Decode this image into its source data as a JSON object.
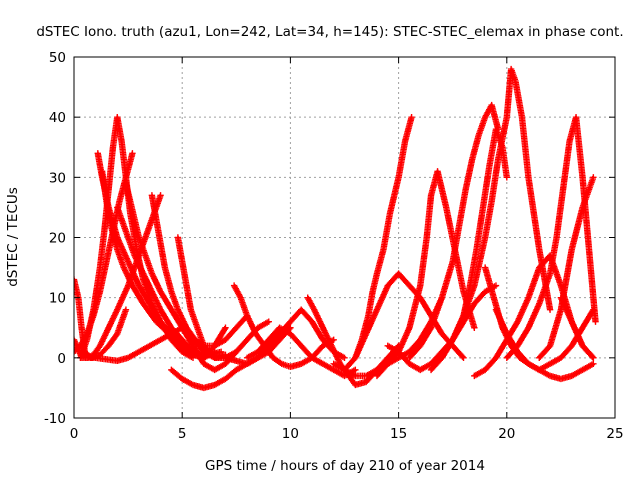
{
  "chart_data": {
    "type": "scatter",
    "title": "dSTEC Iono. truth (azu1, Lon=242, Lat=34, h=145): STEC-STEC_elemax in phase cont.",
    "xlabel": "GPS time / hours of day 210 of year 2014",
    "ylabel": "dSTEC  / TECUs",
    "xlim": [
      0,
      25
    ],
    "ylim": [
      -10,
      50
    ],
    "x_ticks": [
      "0",
      "5",
      "10",
      "15",
      "20",
      "25"
    ],
    "y_ticks": [
      "-10",
      "0",
      "10",
      "20",
      "30",
      "40",
      "50"
    ],
    "x_tick_values": [
      0,
      5,
      10,
      15,
      20,
      25
    ],
    "y_tick_values": [
      -10,
      0,
      10,
      20,
      30,
      40,
      50
    ],
    "grid": true,
    "marker": "+",
    "color": "#ff0000",
    "series": [
      {
        "x": [
          0.0,
          0.2,
          0.35,
          0.5,
          0.8,
          1.2,
          1.6,
          2.0,
          2.4
        ],
        "y": [
          13,
          10,
          5,
          1,
          0,
          0.5,
          2,
          4,
          8
        ]
      },
      {
        "x": [
          0.0,
          0.3,
          0.6,
          0.9,
          1.2,
          1.6,
          2.0,
          2.5,
          3.0,
          3.5,
          4.0
        ],
        "y": [
          3,
          0.5,
          0,
          0.5,
          2,
          5,
          8,
          12,
          17,
          22,
          27
        ]
      },
      {
        "x": [
          0.0,
          0.3,
          0.6,
          0.9,
          1.2,
          1.5,
          1.8,
          2.1,
          2.4,
          2.7
        ],
        "y": [
          1,
          2,
          4,
          7,
          11,
          16,
          21,
          26,
          30,
          34
        ]
      },
      {
        "x": [
          0.3,
          0.6,
          0.9,
          1.2,
          1.4,
          1.6,
          1.8,
          2.0,
          2.2,
          2.4,
          2.6,
          2.9,
          3.2,
          3.6,
          4.0,
          4.5,
          5.0,
          5.5
        ],
        "y": [
          0,
          3,
          8,
          15,
          21,
          28,
          35,
          40,
          36,
          30,
          24,
          18,
          13,
          9,
          6,
          3,
          1,
          0
        ]
      },
      {
        "x": [
          1.1,
          1.3,
          1.6,
          2.0,
          2.5,
          3.0,
          3.5,
          4.0,
          4.5,
          5.0,
          5.5,
          6.0,
          6.5
        ],
        "y": [
          34,
          30,
          25,
          20,
          16,
          12,
          9,
          6,
          4,
          2,
          0.5,
          0,
          1
        ]
      },
      {
        "x": [
          1.3,
          1.5,
          1.7,
          2.0,
          2.3,
          2.7,
          3.2,
          3.8,
          4.4,
          5.0,
          5.6,
          6.2,
          6.8
        ],
        "y": [
          31,
          26,
          22,
          18,
          15,
          12,
          9,
          6,
          4,
          2,
          1,
          0.5,
          1
        ]
      },
      {
        "x": [
          2.4,
          2.6,
          2.8,
          3.0,
          3.3,
          3.6,
          4.0,
          4.5,
          5.0,
          5.5,
          6.0,
          6.5,
          7.0,
          7.5
        ],
        "y": [
          29,
          26,
          23,
          20,
          17,
          14,
          11,
          8,
          5,
          2,
          -1,
          -2,
          -1,
          1
        ]
      },
      {
        "x": [
          2.0,
          2.4,
          2.8,
          3.2,
          3.6,
          4.0,
          4.5,
          5.0,
          5.5,
          6.0,
          6.5,
          7.0
        ],
        "y": [
          25,
          21,
          17,
          14,
          11,
          8,
          5,
          3,
          1,
          0,
          2,
          5
        ]
      },
      {
        "x": [
          3.6,
          3.8,
          4.0,
          4.2,
          4.5,
          4.8,
          5.2,
          5.6,
          6.0,
          6.5,
          7.0,
          7.5,
          8.0
        ],
        "y": [
          27,
          23,
          19,
          15,
          11,
          8,
          5,
          3,
          2,
          2,
          3,
          5,
          7
        ]
      },
      {
        "x": [
          0.3,
          1.0,
          2.0,
          2.5,
          3.0,
          3.5,
          4.0,
          4.5,
          5.0,
          5.5,
          6.0,
          6.5,
          7.0
        ],
        "y": [
          0,
          0,
          -0.5,
          0,
          1,
          2,
          3,
          4,
          5,
          3,
          1,
          0,
          0.5
        ]
      },
      {
        "x": [
          4.8,
          5.0,
          5.2,
          5.4,
          5.7,
          6.0,
          6.5,
          7.0,
          7.5,
          8.0,
          8.5,
          9.0
        ],
        "y": [
          20,
          16,
          12,
          8,
          5,
          2,
          0,
          0,
          1,
          3,
          5,
          6
        ]
      },
      {
        "x": [
          4.5,
          5.0,
          5.5,
          6.0,
          6.5,
          7.0,
          7.5,
          8.0,
          8.5,
          9.0,
          9.5,
          10.0
        ],
        "y": [
          -2,
          -3.5,
          -4.5,
          -5,
          -4.5,
          -3.5,
          -2,
          -1,
          0,
          1,
          3,
          5
        ]
      },
      {
        "x": [
          7.4,
          7.7,
          8.0,
          8.4,
          8.8,
          9.2,
          9.6,
          10.0,
          10.5,
          11.0,
          11.5,
          12.0
        ],
        "y": [
          12,
          10,
          7,
          4,
          2,
          0,
          -1,
          -1.5,
          -1,
          0,
          2,
          3
        ]
      },
      {
        "x": [
          6.5,
          7.0,
          7.5,
          8.0,
          8.5,
          9.0,
          9.5,
          10.0,
          10.5,
          11.0,
          11.5,
          12.0,
          12.5
        ],
        "y": [
          0,
          0,
          -0.5,
          -1,
          0,
          2,
          4,
          6,
          8,
          6,
          3,
          1,
          0
        ]
      },
      {
        "x": [
          8.0,
          8.5,
          9.0,
          9.5,
          10.0,
          10.5,
          11.0,
          11.5,
          12.0,
          12.5,
          13.0
        ],
        "y": [
          0,
          1,
          3,
          5,
          4,
          2,
          0,
          -1,
          -2,
          -3,
          -2
        ]
      },
      {
        "x": [
          10.8,
          11.1,
          11.5,
          11.9,
          12.3,
          12.7,
          13.0,
          13.5,
          14.0,
          14.5,
          15.0
        ],
        "y": [
          10,
          8,
          5,
          2,
          -1,
          -3,
          -4.5,
          -4,
          -2,
          0,
          2
        ]
      },
      {
        "x": [
          12.0,
          12.5,
          13.0,
          13.5,
          14.0,
          14.5,
          15.0,
          15.5,
          16.0,
          16.5,
          17.0
        ],
        "y": [
          -1,
          -2,
          -3,
          -3,
          -2,
          -1,
          0,
          1,
          3,
          6,
          10
        ]
      },
      {
        "x": [
          12.5,
          13.0,
          13.3,
          13.6,
          13.8,
          14.0,
          14.3,
          14.6,
          15.0,
          15.3,
          15.6
        ],
        "y": [
          -2,
          0,
          3,
          7,
          11,
          14,
          18,
          24,
          30,
          36,
          40
        ]
      },
      {
        "x": [
          13.0,
          13.5,
          14.0,
          14.5,
          15.0,
          15.5,
          16.0,
          16.5,
          17.0,
          17.5,
          18.0
        ],
        "y": [
          0,
          4,
          8,
          12,
          14,
          12,
          10,
          7,
          4,
          2,
          0
        ]
      },
      {
        "x": [
          14.0,
          14.5,
          15.0,
          15.5,
          16.0,
          16.3,
          16.5,
          16.8,
          17.2,
          17.6,
          18.0,
          18.5
        ],
        "y": [
          -3,
          -1,
          1,
          5,
          12,
          20,
          27,
          31,
          25,
          18,
          11,
          5
        ]
      },
      {
        "x": [
          14.5,
          15.0,
          15.5,
          16.0,
          16.5,
          17.0,
          17.5,
          18.0,
          18.5,
          19.0,
          19.5
        ],
        "y": [
          2,
          1,
          -1,
          -2,
          -1,
          1,
          3,
          6,
          9,
          11,
          12
        ]
      },
      {
        "x": [
          15.5,
          16.0,
          16.5,
          17.0,
          17.5,
          17.8,
          18.1,
          18.4,
          18.7,
          19.0,
          19.3,
          19.6
        ],
        "y": [
          0,
          2,
          5,
          10,
          16,
          22,
          28,
          33,
          37,
          40,
          42,
          38
        ]
      },
      {
        "x": [
          16.5,
          17.0,
          17.5,
          18.0,
          18.3,
          18.6,
          18.9,
          19.2,
          19.5,
          19.8,
          20.0
        ],
        "y": [
          -2,
          0,
          3,
          7,
          12,
          18,
          25,
          32,
          38,
          35,
          30
        ]
      },
      {
        "x": [
          17.0,
          17.5,
          18.0,
          18.5,
          19.0,
          19.3,
          19.6,
          20.0,
          20.2,
          20.4,
          20.7,
          21.0,
          21.5,
          22.0
        ],
        "y": [
          0,
          3,
          7,
          12,
          20,
          26,
          33,
          40,
          48,
          46,
          40,
          30,
          18,
          8
        ]
      },
      {
        "x": [
          18.5,
          19.0,
          19.5,
          20.0,
          20.5,
          21.0,
          21.5,
          22.0,
          22.5,
          23.0,
          23.5,
          24.0
        ],
        "y": [
          -3,
          -2,
          0,
          3,
          6,
          10,
          15,
          17,
          12,
          6,
          2,
          0
        ]
      },
      {
        "x": [
          19.0,
          19.4,
          19.8,
          20.2,
          20.6,
          21.0,
          21.5,
          22.0,
          22.5,
          23.0,
          23.5,
          24.0
        ],
        "y": [
          15,
          10,
          5,
          2,
          0,
          -1,
          -2,
          -1,
          0,
          2,
          5,
          8
        ]
      },
      {
        "x": [
          20.0,
          20.5,
          21.0,
          21.5,
          22.0,
          22.3,
          22.6,
          22.9,
          23.2,
          23.5,
          23.8,
          24.1
        ],
        "y": [
          0,
          2,
          5,
          9,
          14,
          20,
          28,
          36,
          40,
          30,
          18,
          6
        ]
      },
      {
        "x": [
          19.5,
          20.0,
          20.5,
          21.0,
          21.5,
          22.0,
          22.5,
          23.0,
          23.5,
          24.0
        ],
        "y": [
          8,
          4,
          1,
          -1,
          -2,
          -3,
          -3.5,
          -3,
          -2,
          -1
        ]
      },
      {
        "x": [
          21.5,
          22.0,
          22.5,
          23.0,
          23.5,
          23.8,
          24.0
        ],
        "y": [
          0,
          2,
          8,
          18,
          25,
          28,
          30
        ]
      },
      {
        "x": [
          22.5,
          23.0,
          23.5,
          24.0
        ],
        "y": [
          10,
          6,
          2,
          0
        ]
      }
    ]
  }
}
